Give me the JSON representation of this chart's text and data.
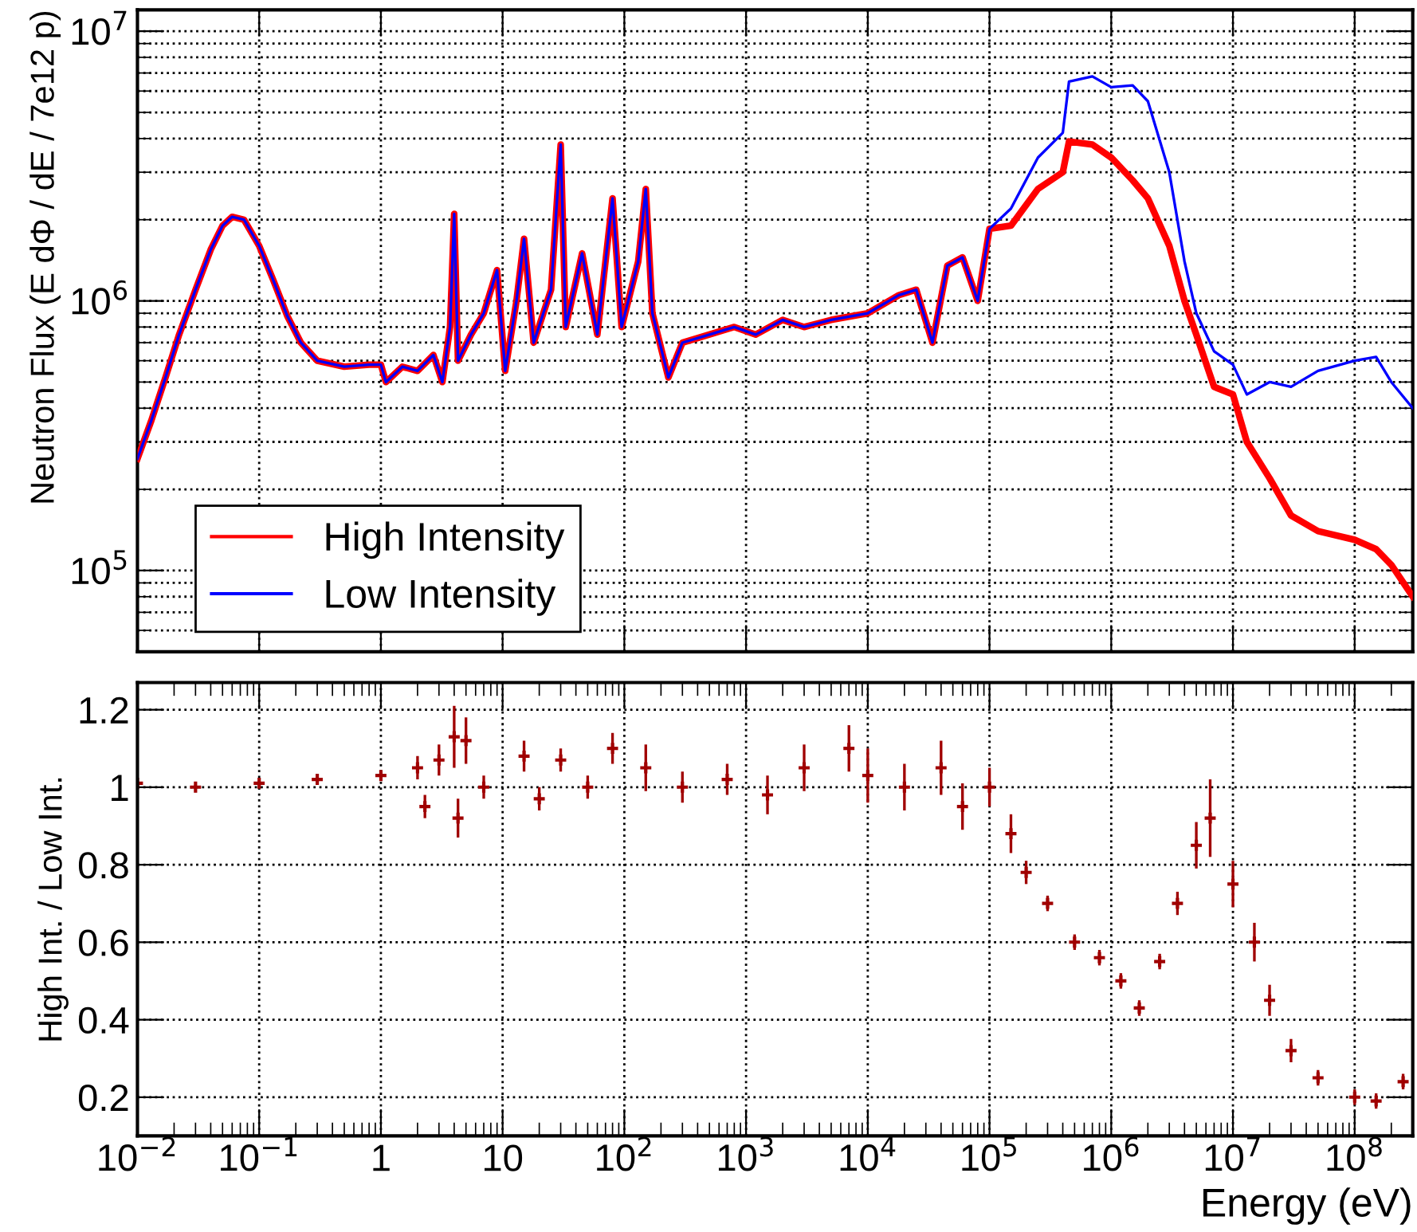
{
  "chart_data": [
    {
      "type": "line",
      "ylabel": "Neutron Flux (E dΦ / dE / 7e12 p)",
      "log": "xy",
      "grid": true,
      "legend": "bottom left",
      "tick_labels": "y",
      "line_style": "solid",
      "xlim": [
        0.01,
        300000000
      ],
      "ylim": [
        50000,
        12000000
      ],
      "xticks": [
        {
          "value": 0.01,
          "label": null
        },
        {
          "value": 0.1,
          "label": null
        },
        {
          "value": 1,
          "label": null
        },
        {
          "value": 10,
          "label": null
        },
        {
          "value": 100,
          "label": null
        },
        {
          "value": 1000,
          "label": null
        },
        {
          "value": 10000,
          "label": null
        },
        {
          "value": 100000,
          "label": null
        },
        {
          "value": 1000000,
          "label": null
        },
        {
          "value": 10000000,
          "label": null
        },
        {
          "value": 100000000,
          "label": null
        }
      ],
      "yticks": [
        {
          "value": 100000,
          "label": "10$^{5}$"
        },
        {
          "value": 1000000,
          "label": "10$^{6}$"
        },
        {
          "value": 10000000,
          "label": "10$^{7}$"
        }
      ],
      "x": [
        0.01,
        0.013,
        0.017,
        0.022,
        0.03,
        0.04,
        0.05,
        0.06,
        0.075,
        0.1,
        0.13,
        0.17,
        0.22,
        0.3,
        0.5,
        0.8,
        1,
        1.1,
        1.5,
        2,
        2.7,
        3.2,
        3.7,
        4,
        4.3,
        5.5,
        7,
        9,
        10.5,
        13,
        15,
        18,
        25,
        30,
        33,
        45,
        60,
        80,
        95,
        130,
        150,
        170,
        230,
        300,
        500,
        800,
        1200,
        2000,
        3000,
        5000,
        10000,
        18000,
        25000,
        34000,
        45000,
        60000,
        80000,
        100000,
        150000,
        250000,
        400000,
        450000,
        700000,
        1000000,
        1500000,
        2000000,
        3000000,
        4000000,
        5000000,
        7000000,
        10000000,
        13000000,
        20000000,
        30000000,
        50000000,
        100000000,
        150000000,
        200000000,
        300000000
      ],
      "series": [
        {
          "name": "Low Intensity",
          "color": "#0000ff",
          "values": [
            260000,
            360000,
            520000,
            750000,
            1100000,
            1550000,
            1900000,
            2050000,
            2000000,
            1600000,
            1200000,
            880000,
            700000,
            600000,
            570000,
            580000,
            580000,
            500000,
            570000,
            550000,
            630000,
            500000,
            800000,
            2100000,
            600000,
            750000,
            900000,
            1300000,
            550000,
            1000000,
            1700000,
            700000,
            1100000,
            3800000,
            800000,
            1500000,
            750000,
            2400000,
            800000,
            1400000,
            2600000,
            900000,
            520000,
            700000,
            750000,
            800000,
            750000,
            850000,
            800000,
            850000,
            900000,
            1050000,
            1100000,
            700000,
            1350000,
            1450000,
            1000000,
            1850000,
            2200000,
            3400000,
            4200000,
            6500000,
            6800000,
            6200000,
            6300000,
            5500000,
            3000000,
            1400000,
            900000,
            650000,
            580000,
            450000,
            500000,
            480000,
            550000,
            600000,
            620000,
            500000,
            400000
          ]
        },
        {
          "name": "High Intensity",
          "color": "#ff0000",
          "values": [
            260000,
            360000,
            520000,
            750000,
            1100000,
            1550000,
            1900000,
            2050000,
            2000000,
            1600000,
            1200000,
            880000,
            700000,
            600000,
            570000,
            580000,
            580000,
            500000,
            570000,
            550000,
            630000,
            500000,
            800000,
            2100000,
            600000,
            750000,
            900000,
            1300000,
            550000,
            1000000,
            1700000,
            700000,
            1100000,
            3800000,
            800000,
            1500000,
            750000,
            2400000,
            800000,
            1400000,
            2600000,
            900000,
            520000,
            700000,
            750000,
            800000,
            750000,
            850000,
            800000,
            850000,
            900000,
            1050000,
            1100000,
            700000,
            1350000,
            1450000,
            1000000,
            1850000,
            1900000,
            2600000,
            3000000,
            3900000,
            3800000,
            3400000,
            2800000,
            2400000,
            1600000,
            1000000,
            750000,
            480000,
            450000,
            300000,
            220000,
            160000,
            140000,
            130000,
            120000,
            105000,
            80000
          ]
        }
      ]
    },
    {
      "type": "scatter",
      "xlabel": "Energy (eV)",
      "ylabel": "High Int. / Low Int.",
      "log": "x",
      "grid": true,
      "marker": "cross",
      "xlim": [
        0.01,
        300000000
      ],
      "ylim": [
        0.1,
        1.27
      ],
      "xticks": [
        {
          "value": 0.01,
          "label": "10$^{−2}$"
        },
        {
          "value": 0.1,
          "label": "10$^{−1}$"
        },
        1,
        10,
        {
          "value": 100,
          "label": "10$^{2}$"
        },
        {
          "value": 1000,
          "label": "10$^{3}$"
        },
        {
          "value": 10000,
          "label": "10$^{4}$"
        },
        {
          "value": 100000,
          "label": "10$^{5}$"
        },
        {
          "value": 1000000,
          "label": "10$^{6}$"
        },
        {
          "value": 10000000,
          "label": "10$^{7}$"
        },
        {
          "value": 100000000,
          "label": "10$^{8}$"
        }
      ],
      "yticks": [
        0.2,
        0.4,
        0.6,
        0.8,
        1,
        1.2
      ],
      "x": [
        0.01,
        0.03,
        0.1,
        0.3,
        1,
        2,
        2.3,
        3,
        4,
        4.3,
        5,
        7,
        15,
        20,
        30,
        50,
        80,
        150,
        300,
        700,
        1500,
        3000,
        7000,
        10000,
        20000,
        40000,
        60000,
        100000,
        150000,
        200000,
        300000,
        500000,
        800000,
        1200000,
        1700000,
        2500000,
        3500000,
        5000000,
        6500000,
        10000000,
        15000000,
        20000000,
        30000000,
        50000000,
        100000000,
        150000000,
        250000000
      ],
      "series": [
        {
          "color": "#a00000",
          "values": [
            1.01,
            1.0,
            1.01,
            1.02,
            1.03,
            1.05,
            0.95,
            1.07,
            1.13,
            0.92,
            1.12,
            1.0,
            1.08,
            0.97,
            1.07,
            1.0,
            1.1,
            1.05,
            1.0,
            1.02,
            0.98,
            1.05,
            1.1,
            1.03,
            1.0,
            1.05,
            0.95,
            1.0,
            0.88,
            0.78,
            0.7,
            0.6,
            0.56,
            0.5,
            0.43,
            0.55,
            0.7,
            0.85,
            0.92,
            0.75,
            0.6,
            0.45,
            0.32,
            0.25,
            0.2,
            0.19,
            0.24
          ],
          "errors": [
            0.005,
            0.005,
            0.005,
            0.005,
            0.01,
            0.03,
            0.03,
            0.04,
            0.08,
            0.05,
            0.06,
            0.03,
            0.04,
            0.03,
            0.03,
            0.03,
            0.04,
            0.06,
            0.04,
            0.04,
            0.05,
            0.06,
            0.06,
            0.07,
            0.06,
            0.07,
            0.06,
            0.05,
            0.05,
            0.03,
            0.02,
            0.02,
            0.02,
            0.02,
            0.02,
            0.02,
            0.03,
            0.06,
            0.1,
            0.06,
            0.05,
            0.04,
            0.03,
            0.02,
            0.02,
            0.02,
            0.02
          ]
        }
      ]
    }
  ]
}
